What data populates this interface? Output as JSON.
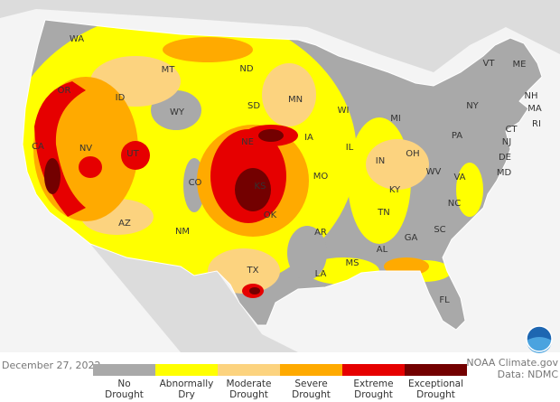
{
  "map": {
    "state_labels": [
      "WA",
      "MT",
      "ND",
      "MN",
      "WI",
      "MI",
      "VT",
      "ME",
      "NH",
      "MA",
      "RI",
      "CT",
      "NJ",
      "NY",
      "PA",
      "DE",
      "MD",
      "OR",
      "ID",
      "WY",
      "SD",
      "IA",
      "IL",
      "IN",
      "OH",
      "CA",
      "NV",
      "UT",
      "CO",
      "NE",
      "KS",
      "MO",
      "KY",
      "WV",
      "VA",
      "NC",
      "TN",
      "AZ",
      "NM",
      "OK",
      "AR",
      "GA",
      "SC",
      "AL",
      "MS",
      "LA",
      "TX",
      "FL"
    ],
    "legend": [
      {
        "lines": [
          "No",
          "Drought"
        ],
        "color": "#a9a9a9"
      },
      {
        "lines": [
          "Abnormally",
          "Dry"
        ],
        "color": "#ffff00"
      },
      {
        "lines": [
          "Moderate",
          "Drought"
        ],
        "color": "#fcd37f"
      },
      {
        "lines": [
          "Severe",
          "Drought"
        ],
        "color": "#ffaa00"
      },
      {
        "lines": [
          "Extreme",
          "Drought"
        ],
        "color": "#e60000"
      },
      {
        "lines": [
          "Exceptional",
          "Drought"
        ],
        "color": "#730000"
      }
    ],
    "date": "December 27, 2022",
    "credits": [
      "NOAA Climate.gov",
      "Data: NDMC"
    ]
  }
}
